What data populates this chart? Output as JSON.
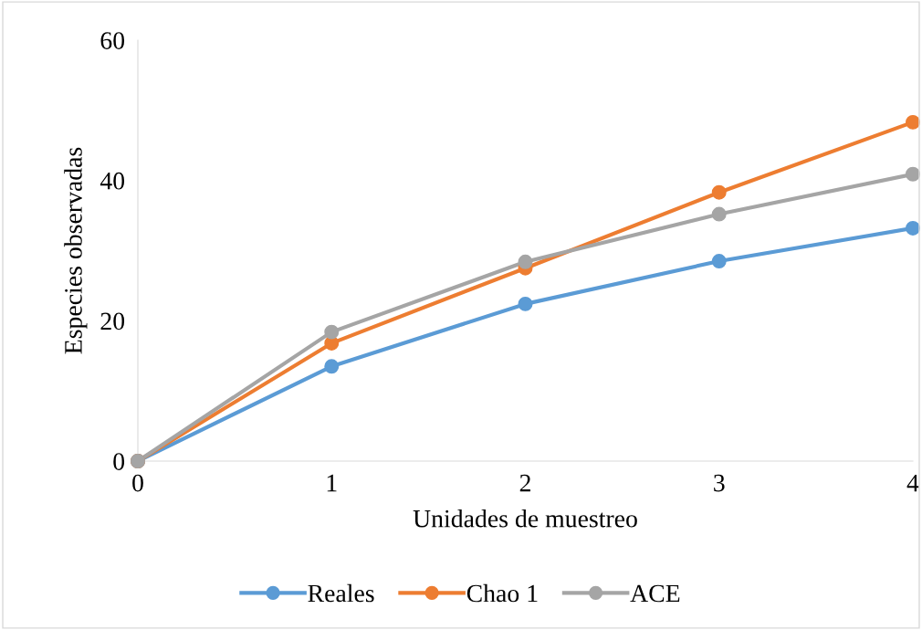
{
  "chart_data": {
    "type": "line",
    "xlabel": "Unidades de muestreo",
    "ylabel": "Especies observadas",
    "x": [
      0,
      1,
      2,
      3,
      4
    ],
    "series": [
      {
        "name": "Reales",
        "color": "#5b9bd5",
        "values": [
          0,
          13.5,
          22.4,
          28.5,
          33.2
        ]
      },
      {
        "name": "Chao 1",
        "color": "#ed7d31",
        "values": [
          0,
          16.8,
          27.5,
          38.3,
          48.3
        ]
      },
      {
        "name": "ACE",
        "color": "#a5a5a5",
        "values": [
          0,
          18.4,
          28.4,
          35.2,
          40.9
        ]
      }
    ],
    "xlim": [
      0,
      4
    ],
    "xticks": [
      0,
      1,
      2,
      3,
      4
    ],
    "ylim": [
      0,
      60
    ],
    "yticks": [
      0,
      20,
      40,
      60
    ],
    "grid": false,
    "legend": "bottom",
    "marker": "circle",
    "line_style": "solid"
  }
}
